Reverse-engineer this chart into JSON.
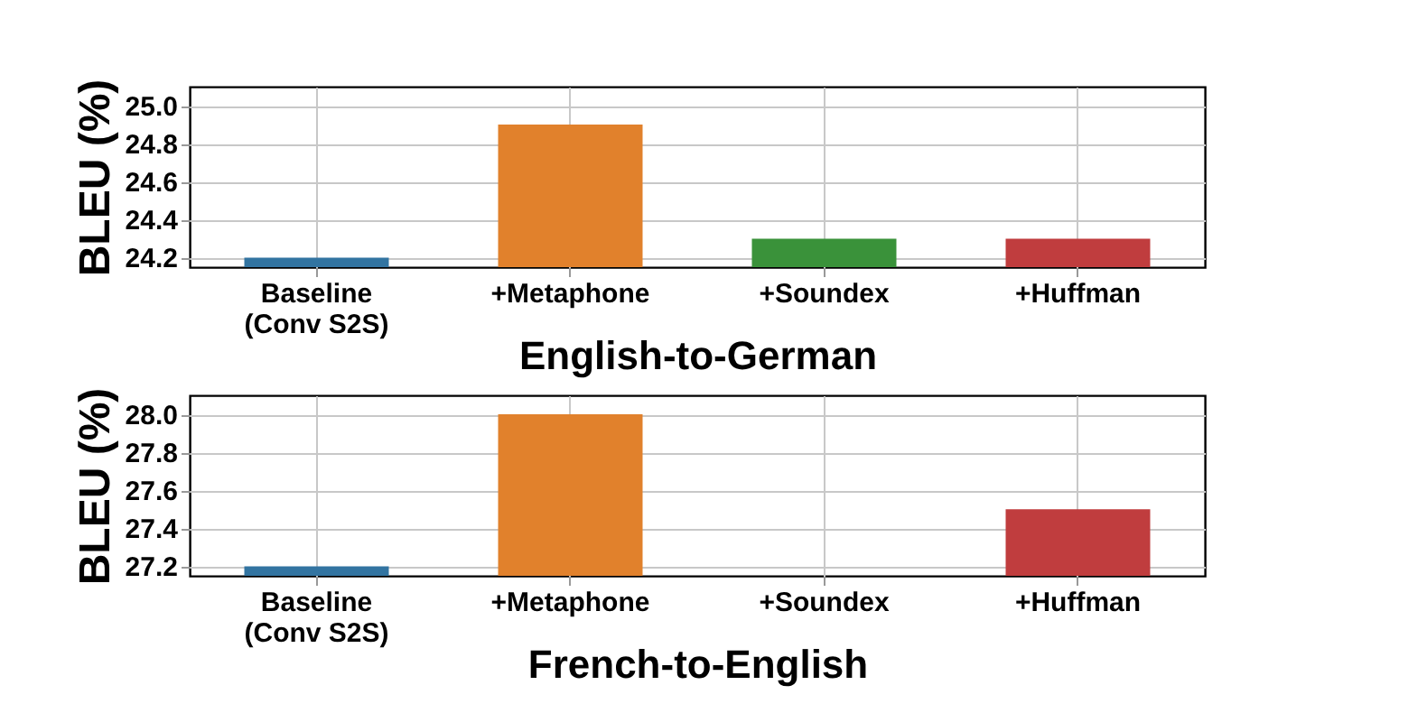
{
  "chart_data": [
    {
      "type": "bar",
      "xlabel": "English-to-German",
      "ylabel": "BLEU (%)",
      "categories": [
        "Baseline\n(Conv S2S)",
        "+Metaphone",
        "+Soundex",
        "+Huffman"
      ],
      "values": [
        24.2,
        24.9,
        24.3,
        24.3
      ],
      "colors": [
        "#3274a1",
        "#e1812c",
        "#3a923a",
        "#c03d3e"
      ],
      "ylim": [
        24.15,
        25.1
      ],
      "yticks": [
        24.2,
        24.4,
        24.6,
        24.8,
        {
          "value": 25,
          "label": "25.0"
        }
      ],
      "grid": true
    },
    {
      "type": "bar",
      "xlabel": "French-to-English",
      "ylabel": "BLEU (%)",
      "categories": [
        "Baseline\n(Conv S2S)",
        "+Metaphone",
        "+Soundex",
        "+Huffman"
      ],
      "values": [
        27.2,
        28.0,
        null,
        27.5
      ],
      "colors": [
        "#3274a1",
        "#e1812c",
        "#3a923a",
        "#c03d3e"
      ],
      "ylim": [
        27.15,
        28.1
      ],
      "yticks": [
        27.2,
        27.4,
        27.6,
        27.8,
        {
          "value": 28,
          "label": "28.0"
        }
      ],
      "grid": true
    }
  ]
}
